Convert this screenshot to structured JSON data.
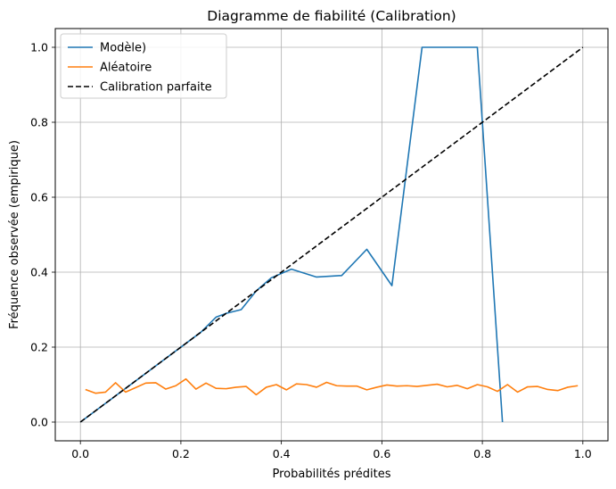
{
  "chart_data": {
    "type": "line",
    "title": "Diagramme de fiabilité (Calibration)",
    "xlabel": "Probabilités prédites",
    "ylabel": "Fréquence observée (empirique)",
    "xlim": [
      -0.05,
      1.05
    ],
    "ylim": [
      -0.05,
      1.05
    ],
    "xticks": [
      0.0,
      0.2,
      0.4,
      0.6,
      0.8,
      1.0
    ],
    "yticks": [
      0.0,
      0.2,
      0.4,
      0.6,
      0.8,
      1.0
    ],
    "xtick_labels": [
      "0.0",
      "0.2",
      "0.4",
      "0.6",
      "0.8",
      "1.0"
    ],
    "ytick_labels": [
      "0.0",
      "0.2",
      "0.4",
      "0.6",
      "0.8",
      "1.0"
    ],
    "grid": true,
    "legend_position": "top-left",
    "series": [
      {
        "name": "Modèle)",
        "color": "#1f77b4",
        "style": "solid",
        "x": [
          0.0,
          0.02,
          0.05,
          0.08,
          0.12,
          0.15,
          0.18,
          0.21,
          0.24,
          0.27,
          0.29,
          0.32,
          0.35,
          0.38,
          0.42,
          0.47,
          0.52,
          0.57,
          0.62,
          0.68,
          0.73,
          0.79,
          0.84
        ],
        "y": [
          0.0,
          0.02,
          0.05,
          0.08,
          0.12,
          0.15,
          0.18,
          0.21,
          0.24,
          0.28,
          0.29,
          0.3,
          0.35,
          0.385,
          0.408,
          0.387,
          0.391,
          0.461,
          0.364,
          1.0,
          1.0,
          1.0,
          0.0
        ]
      },
      {
        "name": "Aléatoire",
        "color": "#ff7f0e",
        "style": "solid",
        "x": [
          0.01,
          0.03,
          0.05,
          0.07,
          0.09,
          0.11,
          0.13,
          0.15,
          0.17,
          0.19,
          0.21,
          0.23,
          0.25,
          0.27,
          0.29,
          0.31,
          0.33,
          0.35,
          0.37,
          0.39,
          0.41,
          0.43,
          0.45,
          0.47,
          0.49,
          0.51,
          0.53,
          0.55,
          0.57,
          0.59,
          0.61,
          0.63,
          0.65,
          0.67,
          0.69,
          0.71,
          0.73,
          0.75,
          0.77,
          0.79,
          0.81,
          0.83,
          0.85,
          0.87,
          0.89,
          0.91,
          0.93,
          0.95,
          0.97,
          0.99
        ],
        "y": [
          0.087,
          0.077,
          0.08,
          0.105,
          0.08,
          0.092,
          0.104,
          0.105,
          0.088,
          0.097,
          0.115,
          0.088,
          0.104,
          0.09,
          0.089,
          0.093,
          0.095,
          0.073,
          0.093,
          0.1,
          0.086,
          0.102,
          0.1,
          0.093,
          0.106,
          0.097,
          0.096,
          0.096,
          0.086,
          0.093,
          0.099,
          0.096,
          0.097,
          0.095,
          0.098,
          0.101,
          0.094,
          0.098,
          0.089,
          0.1,
          0.094,
          0.082,
          0.1,
          0.08,
          0.094,
          0.095,
          0.087,
          0.084,
          0.093,
          0.097
        ]
      },
      {
        "name": "Calibration parfaite",
        "color": "#000000",
        "style": "dashed",
        "x": [
          0.0,
          1.0
        ],
        "y": [
          0.0,
          1.0
        ]
      }
    ]
  }
}
